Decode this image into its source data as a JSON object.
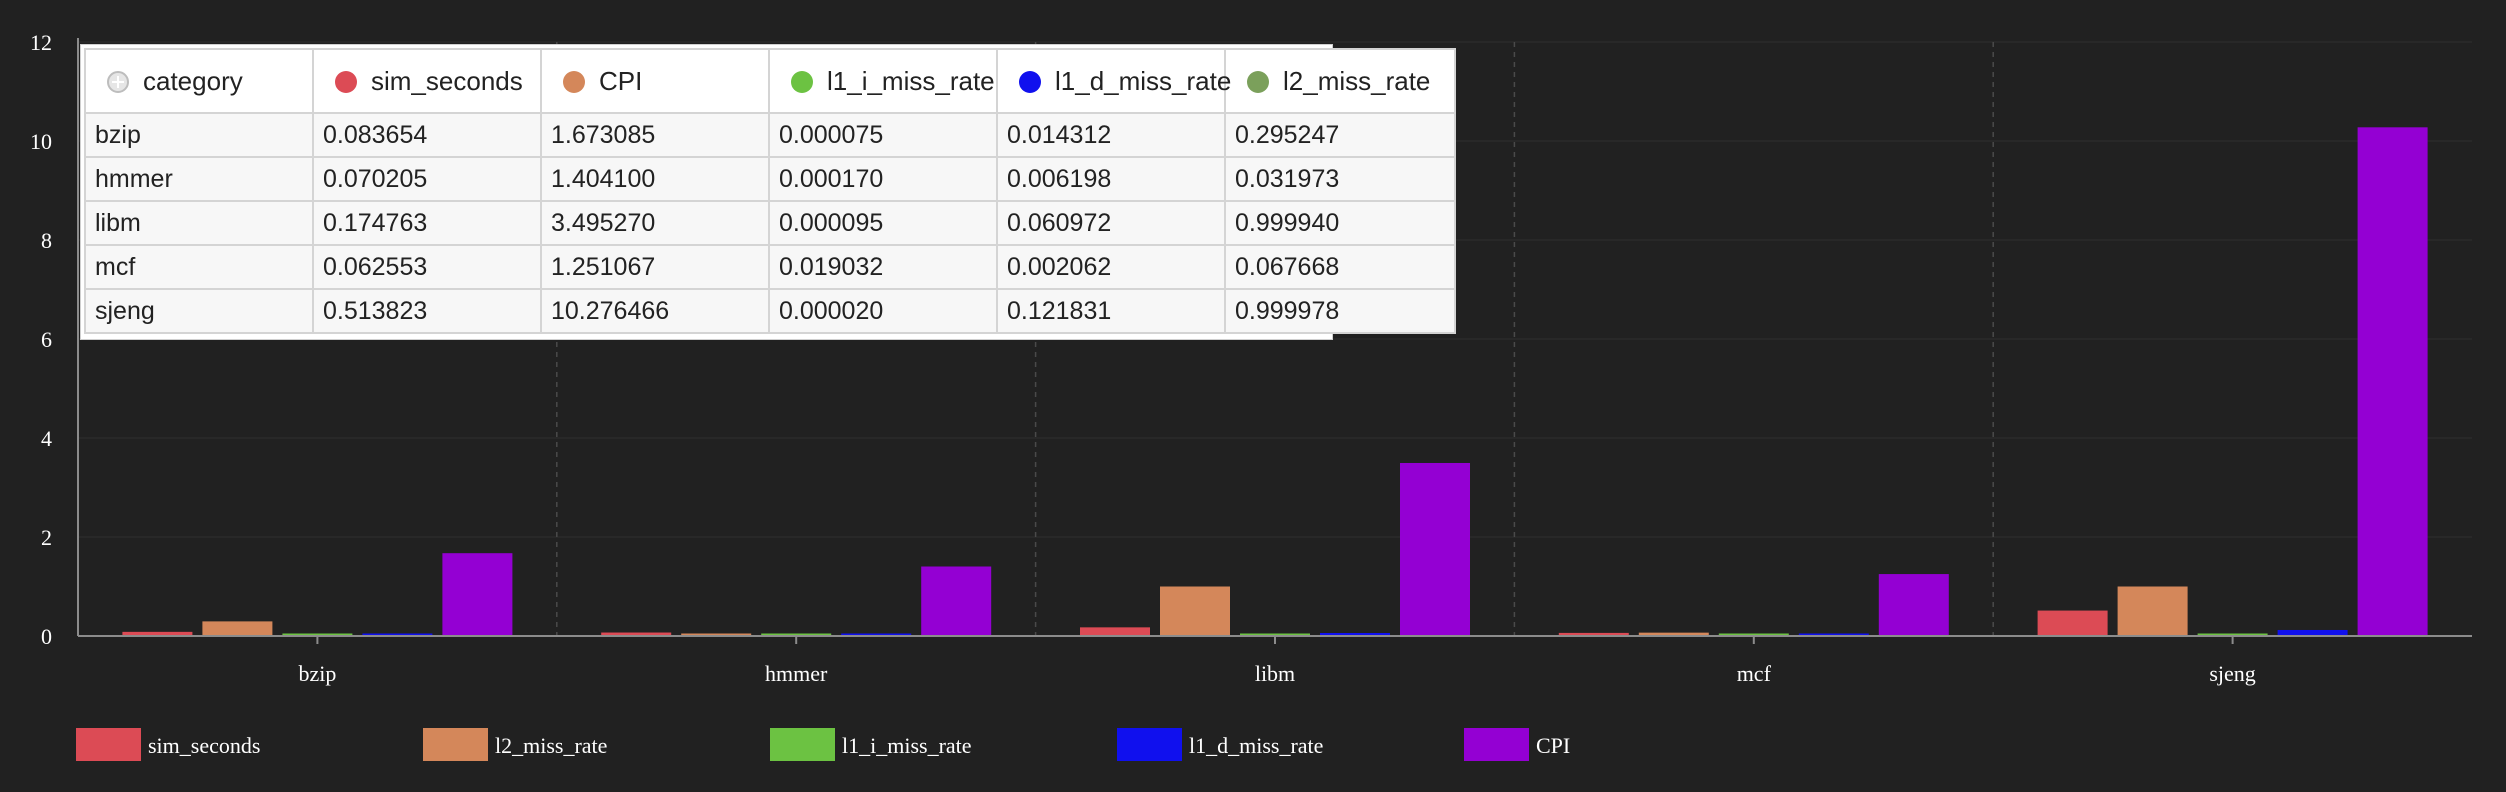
{
  "chart_data": {
    "type": "bar",
    "categories": [
      "bzip",
      "hmmer",
      "libm",
      "mcf",
      "sjeng"
    ],
    "series": [
      {
        "name": "sim_seconds",
        "color": "#dc4b55",
        "values": [
          0.083654,
          0.070205,
          0.174763,
          0.062553,
          0.513823
        ]
      },
      {
        "name": "l2_miss_rate",
        "color": "#d4875a",
        "values": [
          0.295247,
          0.031973,
          0.99994,
          0.067668,
          0.999978
        ]
      },
      {
        "name": "l1_i_miss_rate",
        "color": "#6cc242",
        "values": [
          7.5e-05,
          0.00017,
          9.5e-05,
          0.019032,
          2e-05
        ]
      },
      {
        "name": "l1_d_miss_rate",
        "color": "#1010ee",
        "values": [
          0.014312,
          0.006198,
          0.060972,
          0.002062,
          0.121831
        ]
      },
      {
        "name": "CPI",
        "color": "#9400d3",
        "values": [
          1.673085,
          1.4041,
          3.49527,
          1.251067,
          10.276466
        ]
      }
    ],
    "ylim": [
      0,
      12
    ],
    "yticks": [
      "0",
      "2",
      "4",
      "6",
      "8",
      "10",
      "12"
    ],
    "grid": true,
    "legend_position": "bottom"
  },
  "table": {
    "columns": [
      {
        "label": "category",
        "swatch": "plus"
      },
      {
        "label": "sim_seconds",
        "color": "#dc4b55"
      },
      {
        "label": "CPI",
        "color": "#d4875a"
      },
      {
        "label": "l1_i_miss_rate",
        "color": "#6cc242"
      },
      {
        "label": "l1_d_miss_rate",
        "color": "#1010ee"
      },
      {
        "label": "l2_miss_rate",
        "color": "#7ba05b"
      }
    ],
    "rows": [
      [
        "bzip",
        "0.083654",
        "1.673085",
        "0.000075",
        "0.014312",
        "0.295247"
      ],
      [
        "hmmer",
        "0.070205",
        "1.404100",
        "0.000170",
        "0.006198",
        "0.031973"
      ],
      [
        "libm",
        "0.174763",
        "3.495270",
        "0.000095",
        "0.060972",
        "0.999940"
      ],
      [
        "mcf",
        "0.062553",
        "1.251067",
        "0.019032",
        "0.002062",
        "0.067668"
      ],
      [
        "sjeng",
        "0.513823",
        "10.276466",
        "0.000020",
        "0.121831",
        "0.999978"
      ]
    ]
  },
  "theme": {
    "background": "#212121",
    "axis_color": "#8c8c8c",
    "grid_color": "#2e2e2e",
    "divider_color": "#4a4a4a"
  }
}
